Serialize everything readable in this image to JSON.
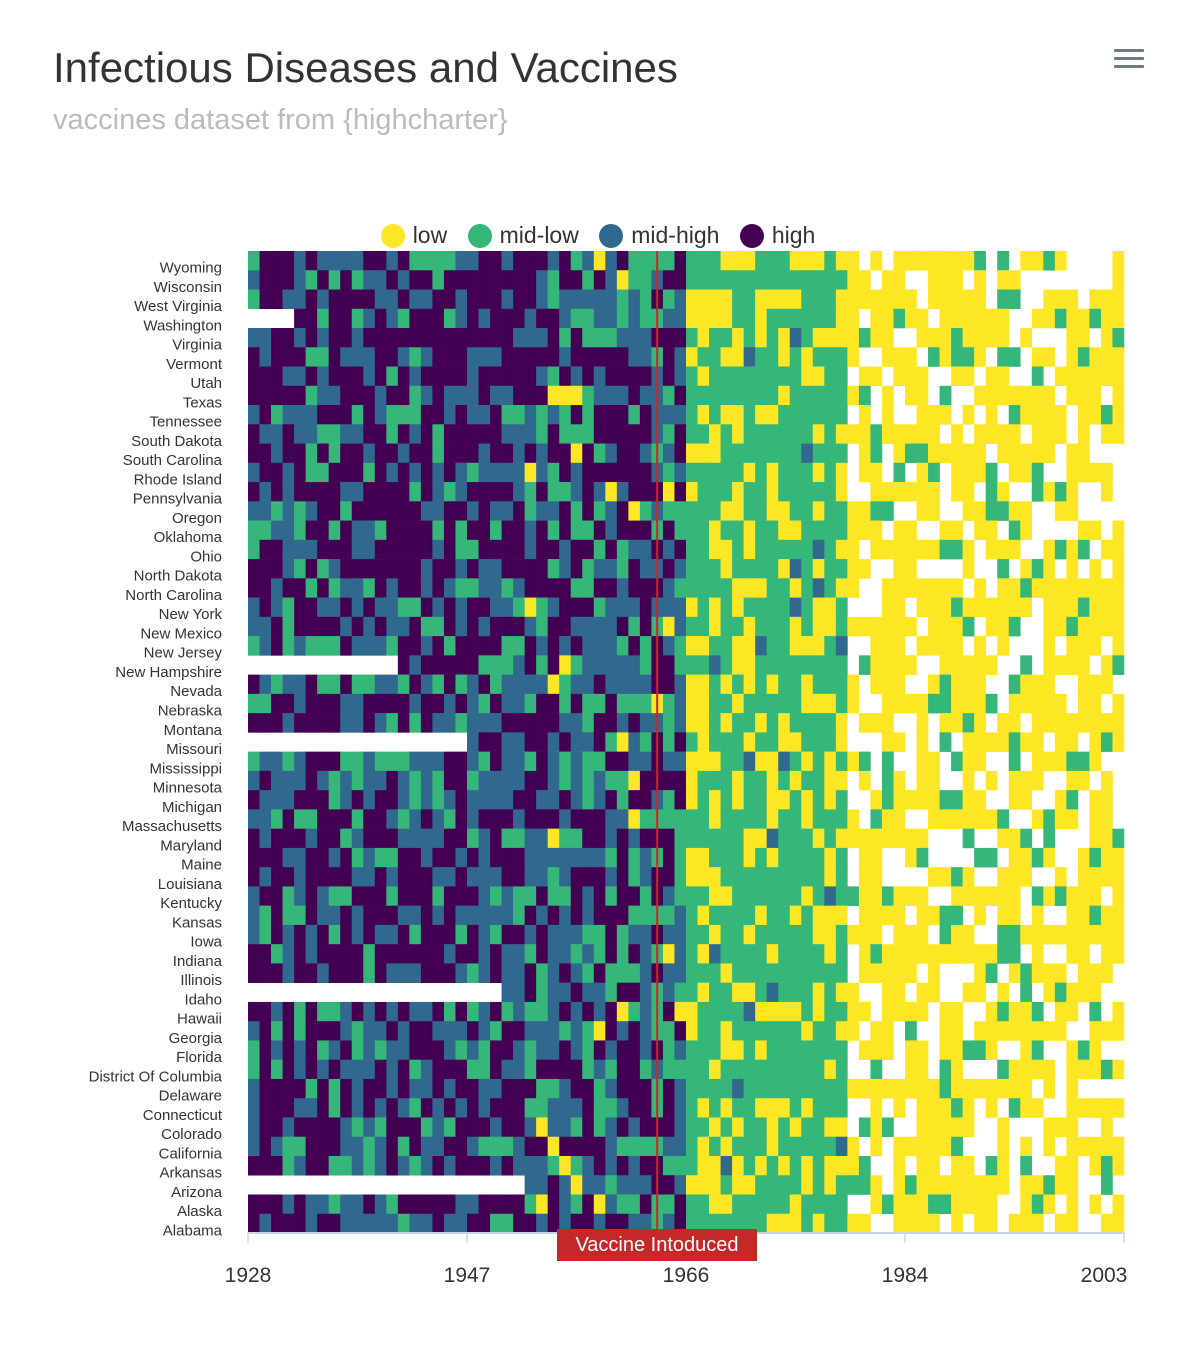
{
  "header": {
    "title": "Infectious Diseases and Vaccines",
    "subtitle": "vaccines dataset from {highcharter}",
    "menu_icon": "hamburger-menu-icon"
  },
  "legend": {
    "items": [
      {
        "label": "low",
        "color": "#fde725"
      },
      {
        "label": "mid-low",
        "color": "#35b779"
      },
      {
        "label": "mid-high",
        "color": "#31688e"
      },
      {
        "label": "high",
        "color": "#440154"
      }
    ]
  },
  "plot_line": {
    "label": "Vaccine Intoduced",
    "year": 1963,
    "color": "#c62828"
  },
  "chart_data": {
    "type": "heatmap",
    "title": "Infectious Diseases and Vaccines",
    "subtitle": "vaccines dataset from {highcharter}",
    "x_range": [
      1928,
      2003
    ],
    "x_ticks": [
      "1928",
      "1947",
      "1966",
      "1984",
      "2003"
    ],
    "states": [
      "Wyoming",
      "Wisconsin",
      "West Virginia",
      "Washington",
      "Virginia",
      "Vermont",
      "Utah",
      "Texas",
      "Tennessee",
      "South Dakota",
      "South Carolina",
      "Rhode Island",
      "Pennsylvania",
      "Oregon",
      "Oklahoma",
      "Ohio",
      "North Dakota",
      "North Carolina",
      "New York",
      "New Mexico",
      "New Jersey",
      "New Hampshire",
      "Nevada",
      "Nebraska",
      "Montana",
      "Missouri",
      "Mississippi",
      "Minnesota",
      "Michigan",
      "Massachusetts",
      "Maryland",
      "Maine",
      "Louisiana",
      "Kentucky",
      "Kansas",
      "Iowa",
      "Indiana",
      "Illinois",
      "Idaho",
      "Hawaii",
      "Georgia",
      "Florida",
      "District Of Columbia",
      "Delaware",
      "Connecticut",
      "Colorado",
      "California",
      "Arkansas",
      "Arizona",
      "Alaska",
      "Alabama"
    ],
    "color_classes": [
      "low",
      "mid-low",
      "mid-high",
      "high"
    ],
    "plot_line": {
      "year": 1963,
      "label": "Vaccine Intoduced"
    },
    "missing_ranges": [
      {
        "state": "Washington",
        "from": 1928,
        "to": 1931
      },
      {
        "state": "New Hampshire",
        "from": 1928,
        "to": 1940
      },
      {
        "state": "Missouri",
        "from": 1928,
        "to": 1946
      },
      {
        "state": "Idaho",
        "from": 1928,
        "to": 1949
      },
      {
        "state": "Arizona",
        "from": 1928,
        "to": 1951
      }
    ],
    "grid": true,
    "legend_position": "top-center"
  }
}
